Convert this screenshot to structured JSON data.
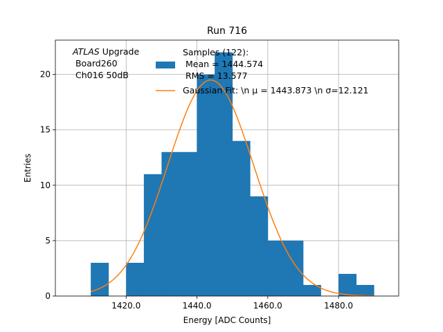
{
  "chart_data": {
    "type": "histogram",
    "title": "Run 716",
    "xlabel": "Energy [ADC Counts]",
    "ylabel": "Entries",
    "xlim": [
      1400,
      1497
    ],
    "ylim": [
      0,
      23.1
    ],
    "x_ticks": [
      1420,
      1440,
      1460,
      1480
    ],
    "x_tick_labels": [
      "1420.0",
      "1440.0",
      "1460.0",
      "1480.0"
    ],
    "y_ticks": [
      0,
      5,
      10,
      15,
      20
    ],
    "y_tick_labels": [
      "0",
      "5",
      "10",
      "15",
      "20"
    ],
    "grid": true,
    "bin_edges": [
      1410,
      1415,
      1420,
      1425,
      1430,
      1435,
      1440,
      1445,
      1450,
      1455,
      1460,
      1465,
      1470,
      1475,
      1480,
      1485,
      1490
    ],
    "counts": [
      3,
      0,
      3,
      11,
      13,
      13,
      20,
      22,
      14,
      9,
      5,
      5,
      1,
      0,
      2,
      1
    ],
    "series": [
      {
        "name": "Samples (122):\n Mean = 1444.574\n RMS = 13.577",
        "kind": "histogram",
        "color": "#1f77b4"
      },
      {
        "name": "Gaussian Fit: \\n μ = 1443.873 \\n σ=12.121",
        "kind": "line",
        "color": "#ff7f0e",
        "amplitude": 19.5,
        "mu": 1443.873,
        "sigma": 12.121,
        "x_range": [
          1410,
          1490
        ]
      }
    ],
    "annotation": [
      "ATLAS Upgrade",
      " Board260",
      " Ch016 50dB"
    ],
    "legend_placement": "top"
  }
}
